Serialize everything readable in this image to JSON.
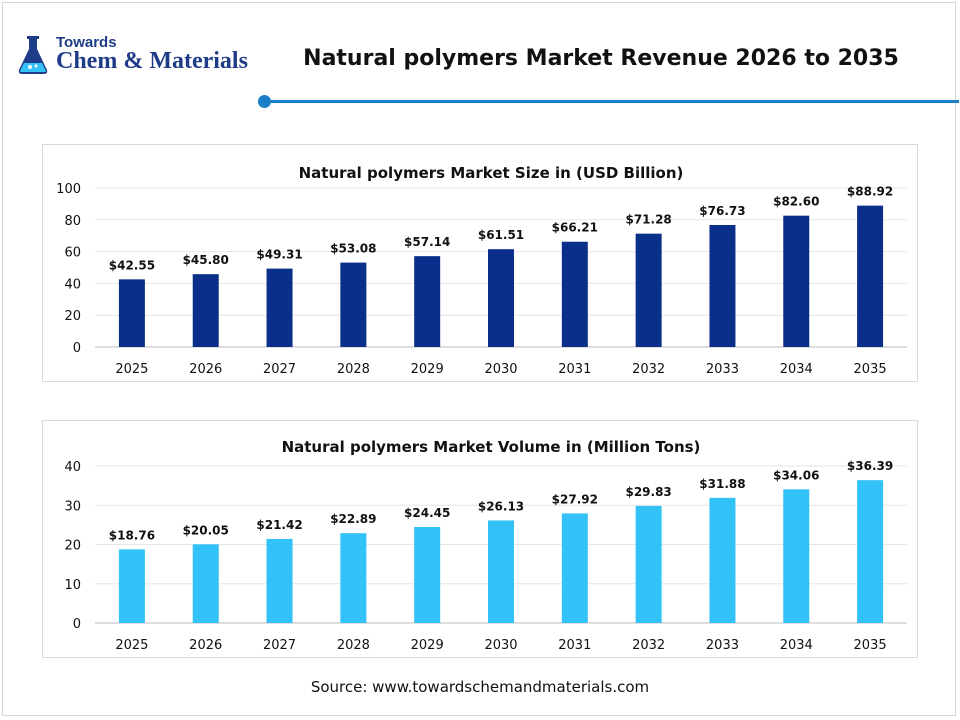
{
  "header": {
    "logo_top": "Towards",
    "logo_main": "Chem & Materials",
    "title": "Natural polymers Market Revenue 2026 to 2035",
    "accent_color": "#1a7ec8",
    "logo_icon": "flask-icon"
  },
  "chart_data": [
    {
      "type": "bar",
      "title": "Natural polymers Market Size in (USD Billion)",
      "xlabel": "",
      "ylabel": "",
      "categories": [
        "2025",
        "2026",
        "2027",
        "2028",
        "2029",
        "2030",
        "2031",
        "2032",
        "2033",
        "2034",
        "2035"
      ],
      "values": [
        42.55,
        45.8,
        49.31,
        53.08,
        57.14,
        61.51,
        66.21,
        71.28,
        76.73,
        82.6,
        88.92
      ],
      "data_labels": [
        "$42.55",
        "$45.80",
        "$49.31",
        "$53.08",
        "$57.14",
        "$61.51",
        "$66.21",
        "$71.28",
        "$76.73",
        "$82.60",
        "$88.92"
      ],
      "ylim": [
        0,
        100
      ],
      "yticks": [
        0,
        20,
        40,
        60,
        80,
        100
      ],
      "grid": true,
      "color": "#0a2f8a"
    },
    {
      "type": "bar",
      "title": "Natural polymers Market Volume in (Million Tons)",
      "xlabel": "",
      "ylabel": "",
      "categories": [
        "2025",
        "2026",
        "2027",
        "2028",
        "2029",
        "2030",
        "2031",
        "2032",
        "2033",
        "2034",
        "2035"
      ],
      "values": [
        18.76,
        20.05,
        21.42,
        22.89,
        24.45,
        26.13,
        27.92,
        29.83,
        31.88,
        34.06,
        36.39
      ],
      "data_labels": [
        "$18.76",
        "$20.05",
        "$21.42",
        "$22.89",
        "$24.45",
        "$26.13",
        "$27.92",
        "$29.83",
        "$31.88",
        "$34.06",
        "$36.39"
      ],
      "ylim": [
        0,
        40
      ],
      "yticks": [
        0,
        10,
        20,
        30,
        40
      ],
      "grid": true,
      "color": "#33c2f7"
    }
  ],
  "footer": {
    "source": "Source: www.towardschemandmaterials.com"
  }
}
